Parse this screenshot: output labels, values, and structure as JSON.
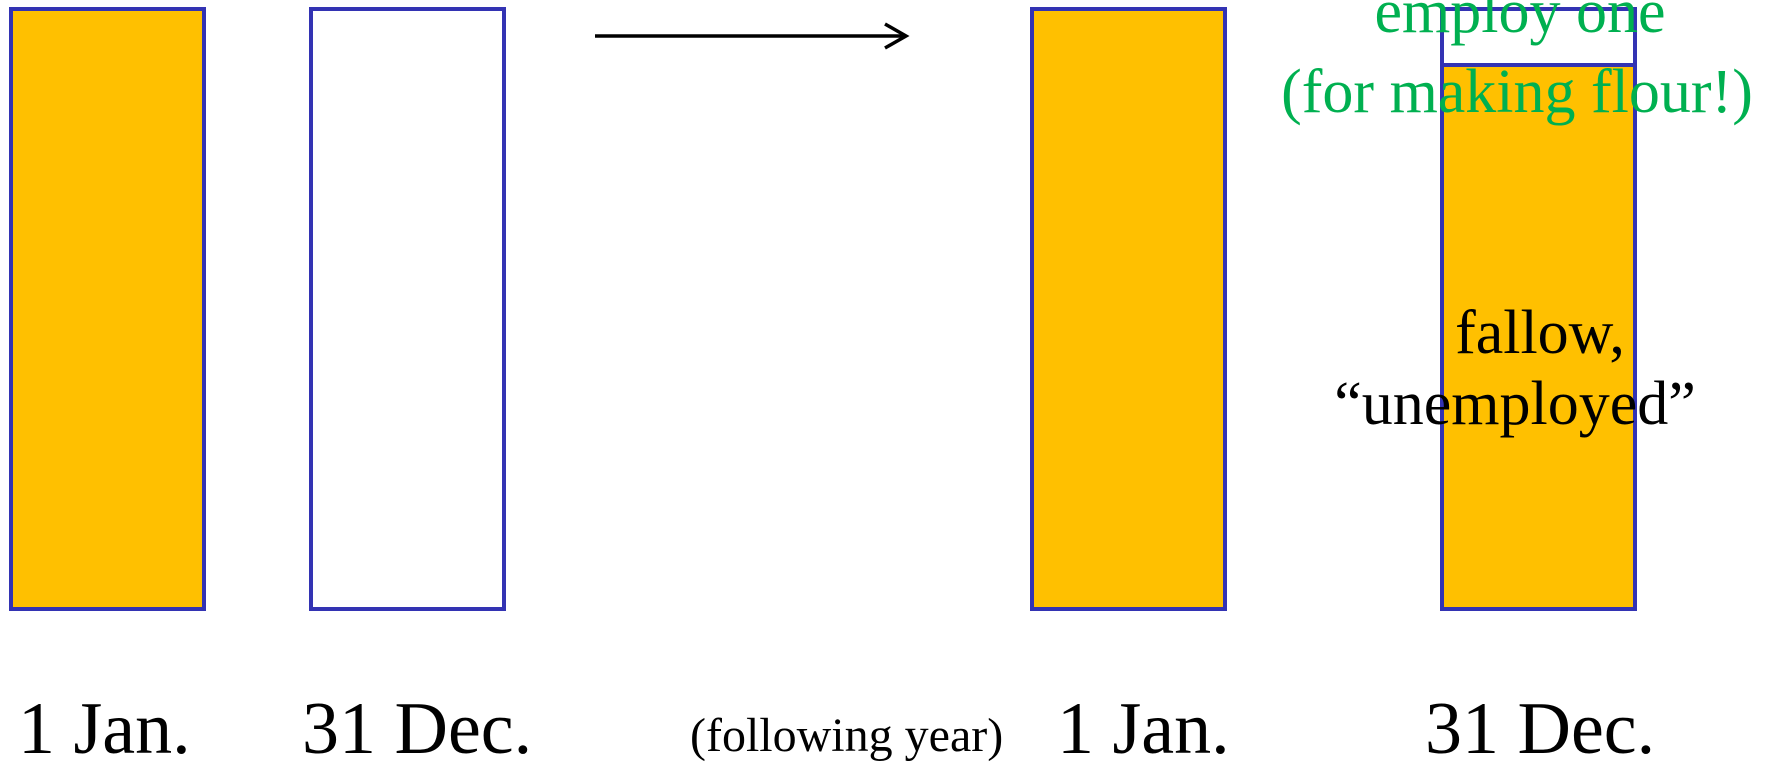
{
  "colors": {
    "bar_fill": "#ffc000",
    "bar_border": "#3333b3",
    "green_text": "#00b050",
    "text": "#000000",
    "arrow": "#000000"
  },
  "bars": [
    {
      "label": "1 Jan.",
      "state": "full"
    },
    {
      "label": "31 Dec.",
      "state": "empty"
    },
    {
      "label": "1 Jan.",
      "state": "full"
    },
    {
      "label": "31 Dec.",
      "state": "mostly-full"
    }
  ],
  "following_year_note": "(following year)",
  "annotations": {
    "employed_line1": "employ one",
    "employed_line2": "(for making flour!)",
    "fallow_line1": "fallow,",
    "fallow_line2": "“unemployed”"
  },
  "icons": {
    "arrow": "right-arrow-icon"
  }
}
